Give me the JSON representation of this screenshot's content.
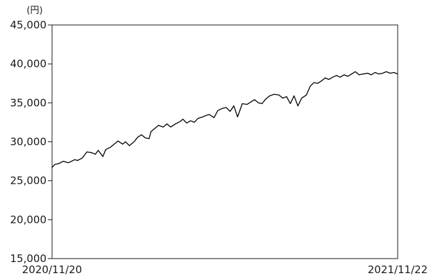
{
  "chart_data": {
    "type": "line",
    "unit_label": "(円)",
    "title": "",
    "xlabel": "",
    "ylabel": "",
    "ylim": [
      15000,
      45000
    ],
    "xlim": [
      "2020-11-20",
      "2021-11-22"
    ],
    "yticks": [
      15000,
      20000,
      25000,
      30000,
      35000,
      40000,
      45000
    ],
    "ytick_labels": [
      "15,000",
      "20,000",
      "25,000",
      "30,000",
      "35,000",
      "40,000",
      "45,000"
    ],
    "xtick_labels": [
      "2020/11/20",
      "2021/11/22"
    ],
    "grid": false,
    "line_color": "#000000",
    "series": [
      {
        "x": [
          "2020-11-20",
          "2020-11-23",
          "2020-11-27",
          "2020-12-02",
          "2020-12-07",
          "2020-12-10",
          "2020-12-14",
          "2020-12-17",
          "2020-12-22",
          "2020-12-27",
          "2021-01-01",
          "2021-01-05",
          "2021-01-08",
          "2021-01-13",
          "2021-01-16",
          "2021-01-21",
          "2021-01-25",
          "2021-01-29",
          "2021-02-03",
          "2021-02-06",
          "2021-02-10",
          "2021-02-15",
          "2021-02-19",
          "2021-02-23",
          "2021-02-27",
          "2021-03-03",
          "2021-03-05",
          "2021-03-09",
          "2021-03-13",
          "2021-03-18",
          "2021-03-22",
          "2021-03-26",
          "2021-03-31",
          "2021-04-05",
          "2021-04-08",
          "2021-04-12",
          "2021-04-16",
          "2021-04-20",
          "2021-04-24",
          "2021-04-29",
          "2021-05-03",
          "2021-05-06",
          "2021-05-11",
          "2021-05-15",
          "2021-05-20",
          "2021-05-24",
          "2021-05-28",
          "2021-06-01",
          "2021-06-05",
          "2021-06-10",
          "2021-06-15",
          "2021-06-19",
          "2021-06-23",
          "2021-06-27",
          "2021-07-01",
          "2021-07-05",
          "2021-07-09",
          "2021-07-14",
          "2021-07-19",
          "2021-07-23",
          "2021-07-27",
          "2021-07-31",
          "2021-08-04",
          "2021-08-08",
          "2021-08-12",
          "2021-08-17",
          "2021-08-21",
          "2021-08-25",
          "2021-08-29",
          "2021-09-03",
          "2021-09-06",
          "2021-09-10",
          "2021-09-14",
          "2021-09-18",
          "2021-09-22",
          "2021-09-26",
          "2021-09-30",
          "2021-10-04",
          "2021-10-08",
          "2021-10-12",
          "2021-10-16",
          "2021-10-21",
          "2021-10-25",
          "2021-10-29",
          "2021-11-02",
          "2021-11-06",
          "2021-11-10",
          "2021-11-14",
          "2021-11-18",
          "2021-11-22"
        ],
        "y": [
          26700,
          27100,
          27200,
          27500,
          27300,
          27450,
          27700,
          27600,
          27900,
          28700,
          28600,
          28400,
          28900,
          28100,
          29000,
          29300,
          29700,
          30100,
          29700,
          30000,
          29500,
          30000,
          30600,
          30900,
          30500,
          30400,
          31300,
          31700,
          32100,
          31900,
          32300,
          31900,
          32300,
          32600,
          32900,
          32400,
          32700,
          32500,
          33000,
          33200,
          33400,
          33500,
          33100,
          34000,
          34300,
          34400,
          33900,
          34600,
          33200,
          34900,
          34800,
          35100,
          35400,
          35000,
          34900,
          35500,
          35900,
          36100,
          36000,
          35600,
          35800,
          34900,
          35900,
          34600,
          35600,
          36000,
          37100,
          37600,
          37500,
          37900,
          38200,
          38000,
          38300,
          38500,
          38300,
          38600,
          38400,
          38700,
          39000,
          38600,
          38700,
          38800,
          38600,
          38900,
          38700,
          38800,
          39000,
          38800,
          38900,
          38700
        ]
      }
    ]
  }
}
